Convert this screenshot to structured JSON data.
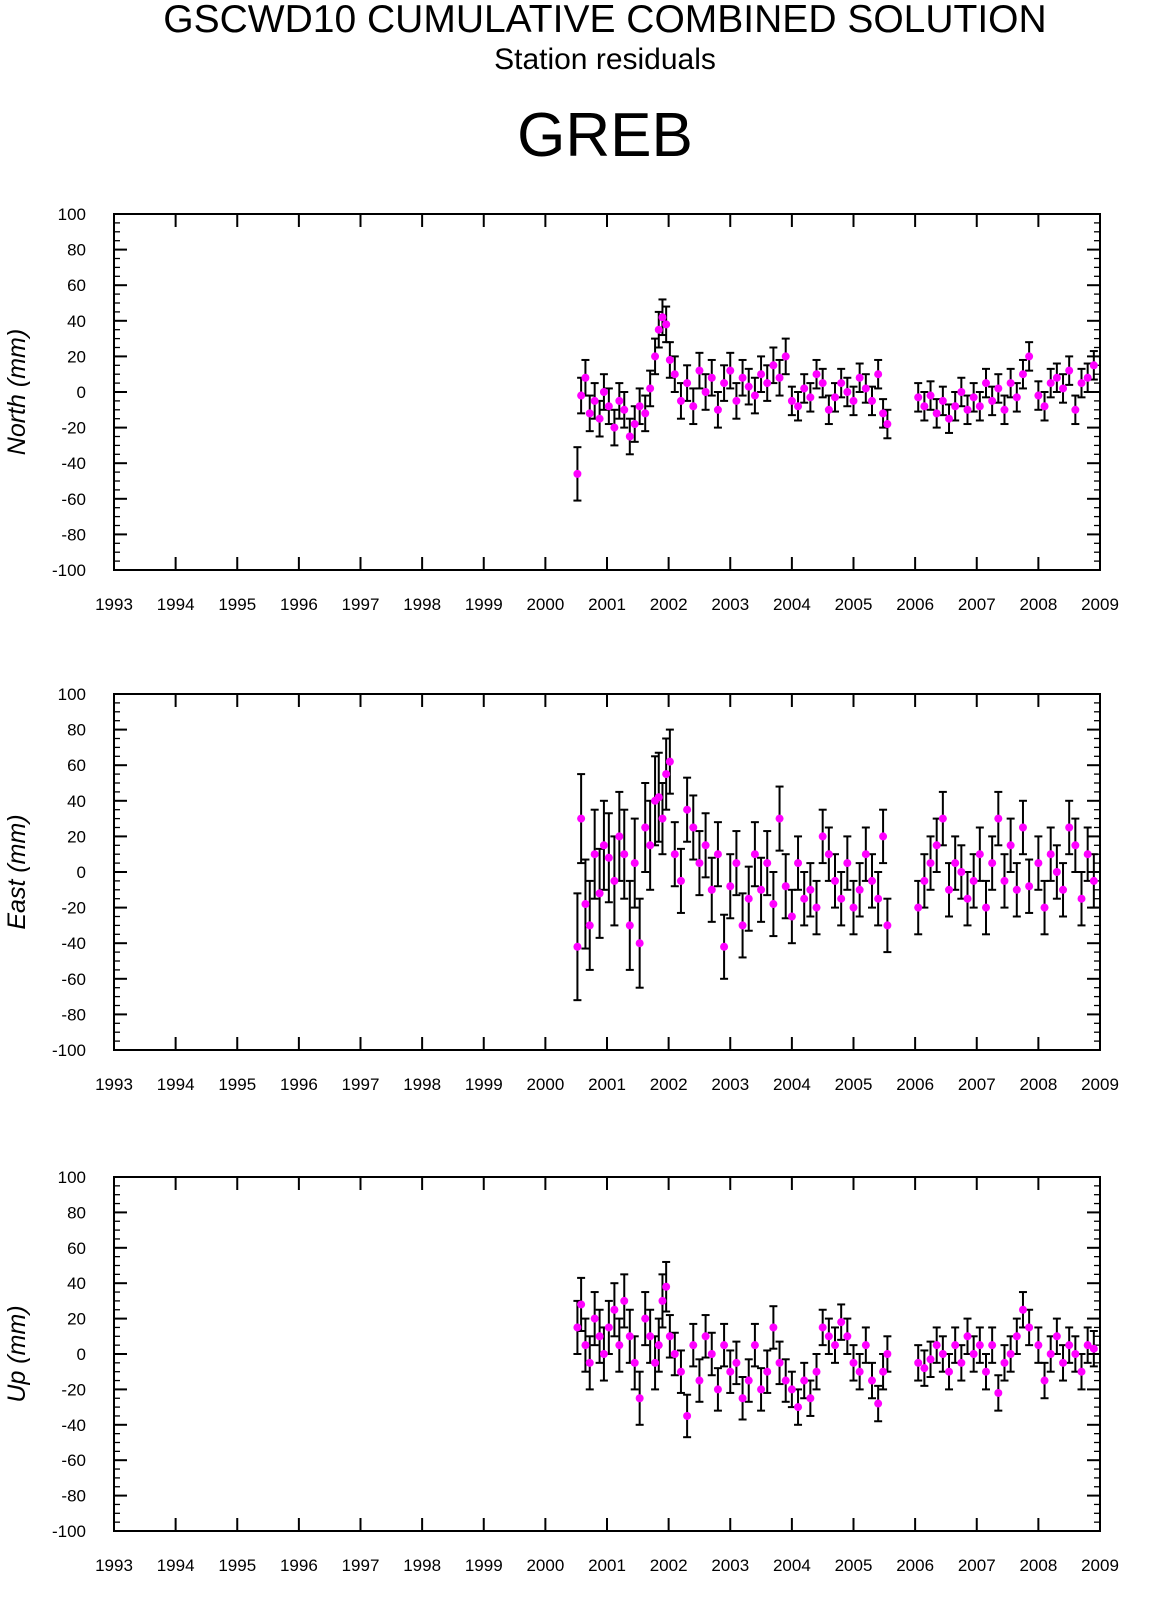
{
  "title": "GSCWD10 CUMULATIVE COMBINED SOLUTION",
  "subtitle": "Station residuals",
  "station": "GREB",
  "chart_data": [
    {
      "type": "scatter",
      "ylabel": "North (mm)",
      "xlim": [
        1993,
        2009
      ],
      "ylim": [
        -100,
        100
      ],
      "x_ticks": [
        "1993",
        "1994",
        "1995",
        "1996",
        "1997",
        "1998",
        "1999",
        "2000",
        "2001",
        "2002",
        "2003",
        "2004",
        "2005",
        "2006",
        "2007",
        "2008",
        "2009"
      ],
      "y_ticks": [
        "100",
        "80",
        "60",
        "40",
        "20",
        "0",
        "-20",
        "-40",
        "-60",
        "-80",
        "-100"
      ],
      "marker_color": "#ff00ff",
      "errorbar_color": "#000000",
      "series": [
        {
          "x": [
            2000.52,
            2000.58,
            2000.65,
            2000.72,
            2000.8,
            2000.88,
            2000.95,
            2001.03,
            2001.12,
            2001.2,
            2001.28,
            2001.37,
            2001.45,
            2001.53,
            2001.62,
            2001.7,
            2001.78,
            2001.84,
            2001.9,
            2001.96,
            2002.02,
            2002.1,
            2002.2,
            2002.3,
            2002.4,
            2002.5,
            2002.6,
            2002.7,
            2002.8,
            2002.9,
            2003.0,
            2003.1,
            2003.2,
            2003.3,
            2003.4,
            2003.5,
            2003.6,
            2003.7,
            2003.8,
            2003.9,
            2004.0,
            2004.1,
            2004.2,
            2004.3,
            2004.4,
            2004.5,
            2004.6,
            2004.7,
            2004.8,
            2004.9,
            2005.0,
            2005.1,
            2005.2,
            2005.3,
            2005.4,
            2005.48,
            2005.55,
            2006.05,
            2006.15,
            2006.25,
            2006.35,
            2006.45,
            2006.55,
            2006.65,
            2006.75,
            2006.85,
            2006.95,
            2007.05,
            2007.15,
            2007.25,
            2007.35,
            2007.45,
            2007.55,
            2007.65,
            2007.75,
            2007.85,
            2008.0,
            2008.1,
            2008.2,
            2008.3,
            2008.4,
            2008.5,
            2008.6,
            2008.7,
            2008.8,
            2008.9
          ],
          "y": [
            -46,
            -2,
            8,
            -12,
            -5,
            -15,
            0,
            -8,
            -20,
            -5,
            -10,
            -25,
            -18,
            -8,
            -12,
            2,
            20,
            35,
            42,
            38,
            18,
            10,
            -5,
            5,
            -8,
            12,
            0,
            8,
            -10,
            5,
            12,
            -5,
            8,
            3,
            -2,
            10,
            5,
            15,
            8,
            20,
            -5,
            -8,
            2,
            -3,
            10,
            5,
            -10,
            -3,
            5,
            0,
            -5,
            8,
            2,
            -5,
            10,
            -12,
            -18,
            -3,
            -8,
            -2,
            -12,
            -5,
            -15,
            -8,
            0,
            -10,
            -3,
            -8,
            5,
            -5,
            2,
            -10,
            5,
            -3,
            10,
            20,
            -2,
            -8,
            5,
            8,
            2,
            12,
            -10,
            5,
            8,
            15
          ],
          "err": [
            15,
            10,
            10,
            10,
            10,
            10,
            10,
            10,
            10,
            10,
            10,
            10,
            10,
            10,
            10,
            10,
            10,
            10,
            10,
            10,
            10,
            10,
            10,
            10,
            10,
            10,
            10,
            10,
            10,
            10,
            10,
            10,
            10,
            10,
            10,
            10,
            10,
            10,
            10,
            10,
            8,
            8,
            8,
            8,
            8,
            8,
            8,
            8,
            8,
            8,
            8,
            8,
            8,
            8,
            8,
            8,
            8,
            8,
            8,
            8,
            8,
            8,
            8,
            8,
            8,
            8,
            8,
            8,
            8,
            8,
            8,
            8,
            8,
            8,
            8,
            8,
            8,
            8,
            8,
            8,
            8,
            8,
            8,
            8,
            8,
            8
          ]
        }
      ]
    },
    {
      "type": "scatter",
      "ylabel": "East (mm)",
      "xlim": [
        1993,
        2009
      ],
      "ylim": [
        -100,
        100
      ],
      "x_ticks": [
        "1993",
        "1994",
        "1995",
        "1996",
        "1997",
        "1998",
        "1999",
        "2000",
        "2001",
        "2002",
        "2003",
        "2004",
        "2005",
        "2006",
        "2007",
        "2008",
        "2009"
      ],
      "y_ticks": [
        "100",
        "80",
        "60",
        "40",
        "20",
        "0",
        "-20",
        "-40",
        "-60",
        "-80",
        "-100"
      ],
      "marker_color": "#ff00ff",
      "errorbar_color": "#000000",
      "series": [
        {
          "x": [
            2000.52,
            2000.58,
            2000.65,
            2000.72,
            2000.8,
            2000.88,
            2000.95,
            2001.03,
            2001.12,
            2001.2,
            2001.28,
            2001.37,
            2001.45,
            2001.53,
            2001.62,
            2001.7,
            2001.78,
            2001.84,
            2001.9,
            2001.96,
            2002.02,
            2002.1,
            2002.2,
            2002.3,
            2002.4,
            2002.5,
            2002.6,
            2002.7,
            2002.8,
            2002.9,
            2003.0,
            2003.1,
            2003.2,
            2003.3,
            2003.4,
            2003.5,
            2003.6,
            2003.7,
            2003.8,
            2003.9,
            2004.0,
            2004.1,
            2004.2,
            2004.3,
            2004.4,
            2004.5,
            2004.6,
            2004.7,
            2004.8,
            2004.9,
            2005.0,
            2005.1,
            2005.2,
            2005.3,
            2005.4,
            2005.48,
            2005.55,
            2006.05,
            2006.15,
            2006.25,
            2006.35,
            2006.45,
            2006.55,
            2006.65,
            2006.75,
            2006.85,
            2006.95,
            2007.05,
            2007.15,
            2007.25,
            2007.35,
            2007.45,
            2007.55,
            2007.65,
            2007.75,
            2007.85,
            2008.0,
            2008.1,
            2008.2,
            2008.3,
            2008.4,
            2008.5,
            2008.6,
            2008.7,
            2008.8,
            2008.9
          ],
          "y": [
            -42,
            30,
            -18,
            -30,
            10,
            -12,
            15,
            8,
            -5,
            20,
            10,
            -30,
            5,
            -40,
            25,
            15,
            40,
            42,
            30,
            55,
            62,
            10,
            -5,
            35,
            25,
            5,
            15,
            -10,
            10,
            -42,
            -8,
            5,
            -30,
            -15,
            10,
            -10,
            5,
            -18,
            30,
            -8,
            -25,
            5,
            -15,
            -10,
            -20,
            20,
            10,
            -5,
            -15,
            5,
            -20,
            -10,
            10,
            -5,
            -15,
            20,
            -30,
            -20,
            -5,
            5,
            15,
            30,
            -10,
            5,
            0,
            -15,
            -5,
            10,
            -20,
            5,
            30,
            -5,
            15,
            -10,
            25,
            -8,
            5,
            -20,
            10,
            0,
            -10,
            25,
            15,
            -15,
            10,
            -5
          ],
          "err": [
            30,
            25,
            25,
            25,
            25,
            25,
            25,
            25,
            25,
            25,
            25,
            25,
            25,
            25,
            25,
            25,
            25,
            25,
            20,
            20,
            18,
            18,
            18,
            18,
            18,
            18,
            18,
            18,
            18,
            18,
            18,
            18,
            18,
            18,
            18,
            18,
            18,
            18,
            18,
            18,
            15,
            15,
            15,
            15,
            15,
            15,
            15,
            15,
            15,
            15,
            15,
            15,
            15,
            15,
            15,
            15,
            15,
            15,
            15,
            15,
            15,
            15,
            15,
            15,
            15,
            15,
            15,
            15,
            15,
            15,
            15,
            15,
            15,
            15,
            15,
            15,
            15,
            15,
            15,
            15,
            15,
            15,
            15,
            15,
            15,
            15
          ]
        }
      ]
    },
    {
      "type": "scatter",
      "ylabel": "Up (mm)",
      "xlim": [
        1993,
        2009
      ],
      "ylim": [
        -100,
        100
      ],
      "x_ticks": [
        "1993",
        "1994",
        "1995",
        "1996",
        "1997",
        "1998",
        "1999",
        "2000",
        "2001",
        "2002",
        "2003",
        "2004",
        "2005",
        "2006",
        "2007",
        "2008",
        "2009"
      ],
      "y_ticks": [
        "100",
        "80",
        "60",
        "40",
        "20",
        "0",
        "-20",
        "-40",
        "-60",
        "-80",
        "-100"
      ],
      "marker_color": "#ff00ff",
      "errorbar_color": "#000000",
      "series": [
        {
          "x": [
            2000.52,
            2000.58,
            2000.65,
            2000.72,
            2000.8,
            2000.88,
            2000.95,
            2001.03,
            2001.12,
            2001.2,
            2001.28,
            2001.37,
            2001.45,
            2001.53,
            2001.62,
            2001.7,
            2001.78,
            2001.84,
            2001.9,
            2001.96,
            2002.02,
            2002.1,
            2002.2,
            2002.3,
            2002.4,
            2002.5,
            2002.6,
            2002.7,
            2002.8,
            2002.9,
            2003.0,
            2003.1,
            2003.2,
            2003.3,
            2003.4,
            2003.5,
            2003.6,
            2003.7,
            2003.8,
            2003.9,
            2004.0,
            2004.1,
            2004.2,
            2004.3,
            2004.4,
            2004.5,
            2004.6,
            2004.7,
            2004.8,
            2004.9,
            2005.0,
            2005.1,
            2005.2,
            2005.3,
            2005.4,
            2005.48,
            2005.55,
            2006.05,
            2006.15,
            2006.25,
            2006.35,
            2006.45,
            2006.55,
            2006.65,
            2006.75,
            2006.85,
            2006.95,
            2007.05,
            2007.15,
            2007.25,
            2007.35,
            2007.45,
            2007.55,
            2007.65,
            2007.75,
            2007.85,
            2008.0,
            2008.1,
            2008.2,
            2008.3,
            2008.4,
            2008.5,
            2008.6,
            2008.7,
            2008.8,
            2008.9
          ],
          "y": [
            15,
            28,
            5,
            -5,
            20,
            10,
            0,
            15,
            25,
            5,
            30,
            10,
            -5,
            -25,
            20,
            10,
            -5,
            5,
            30,
            38,
            10,
            0,
            -10,
            -35,
            5,
            -15,
            10,
            0,
            -20,
            5,
            -10,
            -5,
            -25,
            -15,
            5,
            -20,
            -10,
            15,
            -5,
            -15,
            -20,
            -30,
            -15,
            -25,
            -10,
            15,
            10,
            5,
            18,
            10,
            -5,
            -10,
            5,
            -15,
            -28,
            -10,
            0,
            -5,
            -8,
            -3,
            5,
            0,
            -10,
            5,
            -5,
            10,
            0,
            5,
            -10,
            5,
            -22,
            -5,
            0,
            10,
            25,
            15,
            5,
            -15,
            0,
            10,
            -5,
            5,
            0,
            -10,
            5,
            3
          ],
          "err": [
            15,
            15,
            15,
            15,
            15,
            15,
            15,
            15,
            15,
            15,
            15,
            15,
            15,
            15,
            15,
            15,
            15,
            15,
            15,
            14,
            12,
            12,
            12,
            12,
            12,
            12,
            12,
            12,
            12,
            12,
            12,
            12,
            12,
            12,
            12,
            12,
            12,
            12,
            12,
            12,
            10,
            10,
            10,
            10,
            10,
            10,
            10,
            10,
            10,
            10,
            10,
            10,
            10,
            10,
            10,
            10,
            10,
            10,
            10,
            10,
            10,
            10,
            10,
            10,
            10,
            10,
            10,
            10,
            10,
            10,
            10,
            10,
            10,
            10,
            10,
            10,
            10,
            10,
            10,
            10,
            10,
            10,
            10,
            10,
            10,
            10
          ]
        }
      ]
    }
  ]
}
